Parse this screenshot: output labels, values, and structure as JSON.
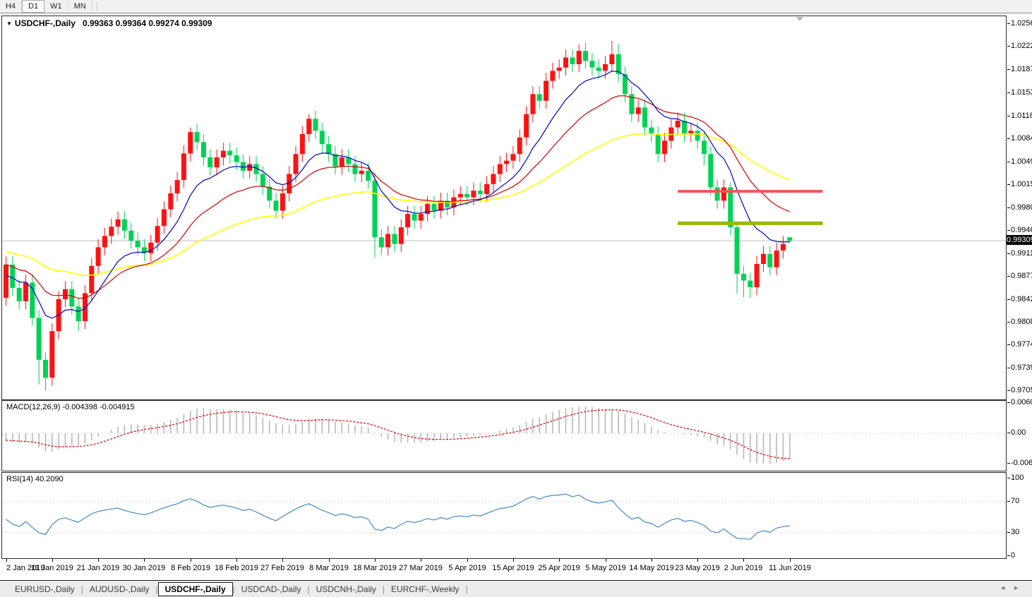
{
  "toolbar": {
    "timeframes": [
      {
        "label": "H4",
        "active": false
      },
      {
        "label": "D1",
        "active": true
      },
      {
        "label": "W1",
        "active": false
      },
      {
        "label": "MN",
        "active": false
      }
    ]
  },
  "chart": {
    "symbol_label": "USDCHF-,Daily",
    "ohlc_label": "0.99363 0.99364 0.99274 0.99309",
    "current_price": "0.99309",
    "price_axis_ticks": [
      "1.02560",
      "1.02220",
      "1.01870",
      "1.01530",
      "1.01180",
      "1.00840",
      "1.00490",
      "1.00150",
      "0.99800",
      "0.99460",
      "0.99110",
      "0.98770",
      "0.98420",
      "0.98080",
      "0.97740",
      "0.97390",
      "0.97050"
    ],
    "date_axis_ticks": [
      "2 Jan 2019",
      "11 Jan 2019",
      "21 Jan 2019",
      "30 Jan 2019",
      "8 Feb 2019",
      "18 Feb 2019",
      "27 Feb 2019",
      "8 Mar 2019",
      "18 Mar 2019",
      "27 Mar 2019",
      "5 Apr 2019",
      "15 Apr 2019",
      "25 Apr 2019",
      "5 May 2019",
      "14 May 2019",
      "23 May 2019",
      "2 Jun 2019",
      "11 Jun 2019"
    ]
  },
  "macd_panel": {
    "label": "MACD(12,26,9) -0.004398 -0.004915",
    "axis_ticks": [
      "0.006058",
      "0.00",
      "-0.006096"
    ]
  },
  "rsi_panel": {
    "label": "RSI(14) 40.2090",
    "axis_ticks": [
      "100",
      "70",
      "30",
      "0"
    ]
  },
  "tabs": {
    "items": [
      {
        "label": "EURUSD-,Daily",
        "active": false
      },
      {
        "label": "AUDUSD-,Daily",
        "active": false
      },
      {
        "label": "USDCHF-,Daily",
        "active": true
      },
      {
        "label": "USDCAD-,Daily",
        "active": false
      },
      {
        "label": "USDCNH-,Daily",
        "active": false
      },
      {
        "label": "EURCHF-,Weekly",
        "active": false
      }
    ],
    "scroll_left": "◄",
    "scroll_right": "►"
  },
  "chart_data": {
    "type": "candlestick",
    "symbol": "USDCHF",
    "timeframe": "Daily",
    "ohlc_current": {
      "open": 0.99363,
      "high": 0.99364,
      "low": 0.99274,
      "close": 0.99309
    },
    "ylim": [
      0.96925,
      1.0268
    ],
    "bars_per_tick": 7,
    "colors": {
      "bullish": "#ff1111",
      "bearish": "#00d255",
      "ma_fast": "#0202c8",
      "ma_medium": "#d40000",
      "ma_slow": "#ffff00",
      "current_price_line": "#c0c0c0",
      "macd_histogram": "#b4b4b4",
      "macd_signal": "#e00000",
      "rsi_line": "#4688c8",
      "rsi_levels": "#b8b8b8"
    },
    "moving_averages": {
      "fast_period": 10,
      "medium_period": 21,
      "slow_period": 50,
      "seeds": {
        "fast": 0.9875,
        "medium": 0.9895,
        "slow": 0.9915
      }
    },
    "macd": {
      "fast": 12,
      "slow": 26,
      "signal": 9,
      "value": -0.004398,
      "signal_value": -0.004915,
      "range": [
        -0.006096,
        0.006058
      ],
      "seeds": {
        "ema_fast": 0.988,
        "ema_slow": 0.99,
        "signal": -0.0013
      }
    },
    "rsi": {
      "period": 14,
      "value": 40.209,
      "levels": [
        70,
        30
      ],
      "range": [
        0,
        100
      ],
      "seeds": {
        "avg_gain": 0.0009,
        "avg_loss": 0.001
      }
    },
    "hlines": [
      {
        "name": "resistance-line",
        "price": 1.0005,
        "color": "#f25555",
        "width": 4,
        "x_from_bar": 102,
        "x_to_bar": 124
      },
      {
        "name": "support-line",
        "price": 0.9957,
        "color": "#9ab800",
        "width": 5,
        "x_from_bar": 102,
        "x_to_bar": 124
      }
    ],
    "candles": [
      [
        0.9845,
        0.9907,
        0.9833,
        0.9895
      ],
      [
        0.9895,
        0.9907,
        0.9848,
        0.986
      ],
      [
        0.986,
        0.9872,
        0.9828,
        0.984
      ],
      [
        0.984,
        0.988,
        0.9828,
        0.9868
      ],
      [
        0.9868,
        0.988,
        0.9803,
        0.9815
      ],
      [
        0.9815,
        0.9827,
        0.9715,
        0.9752
      ],
      [
        0.9752,
        0.9764,
        0.9706,
        0.9725
      ],
      [
        0.9725,
        0.9807,
        0.9713,
        0.9795
      ],
      [
        0.9795,
        0.9855,
        0.9783,
        0.9843
      ],
      [
        0.9843,
        0.987,
        0.9831,
        0.9858
      ],
      [
        0.9858,
        0.987,
        0.982,
        0.9832
      ],
      [
        0.9832,
        0.9844,
        0.9795,
        0.981
      ],
      [
        0.981,
        0.9864,
        0.9798,
        0.9852
      ],
      [
        0.9852,
        0.9905,
        0.984,
        0.9893
      ],
      [
        0.9893,
        0.9933,
        0.9881,
        0.9921
      ],
      [
        0.9921,
        0.995,
        0.9909,
        0.9938
      ],
      [
        0.9938,
        0.9964,
        0.9926,
        0.9952
      ],
      [
        0.9952,
        0.9975,
        0.994,
        0.9963
      ],
      [
        0.9963,
        0.9975,
        0.9934,
        0.9946
      ],
      [
        0.9946,
        0.9958,
        0.9919,
        0.9931
      ],
      [
        0.9931,
        0.9943,
        0.9909,
        0.9921
      ],
      [
        0.9921,
        0.9933,
        0.99,
        0.9912
      ],
      [
        0.9912,
        0.994,
        0.99,
        0.9928
      ],
      [
        0.9928,
        0.9965,
        0.9916,
        0.9953
      ],
      [
        0.9953,
        0.999,
        0.9941,
        0.9978
      ],
      [
        0.9978,
        1.0014,
        0.9966,
        1.0002
      ],
      [
        1.0002,
        1.0034,
        0.999,
        1.0022
      ],
      [
        1.0022,
        1.0074,
        1.001,
        1.0062
      ],
      [
        1.0062,
        1.0101,
        1.005,
        1.0094
      ],
      [
        1.0094,
        1.0106,
        1.0067,
        1.0079
      ],
      [
        1.0079,
        1.0091,
        1.0044,
        1.0056
      ],
      [
        1.0056,
        1.0068,
        1.0029,
        1.0041
      ],
      [
        1.0041,
        1.0068,
        1.0029,
        1.0056
      ],
      [
        1.0056,
        1.0078,
        1.0044,
        1.0066
      ],
      [
        1.0066,
        1.0078,
        1.0047,
        1.0059
      ],
      [
        1.0059,
        1.0071,
        1.0037,
        1.0049
      ],
      [
        1.0049,
        1.0061,
        1.0024,
        1.0036
      ],
      [
        1.0036,
        1.0058,
        1.0024,
        1.0046
      ],
      [
        1.0046,
        1.0058,
        1.0019,
        1.0031
      ],
      [
        1.0031,
        1.0043,
        1.0,
        1.0012
      ],
      [
        1.0012,
        1.0024,
        0.9979,
        0.9991
      ],
      [
        0.9991,
        1.0003,
        0.9964,
        0.9976
      ],
      [
        0.9976,
        1.0014,
        0.9964,
        1.0002
      ],
      [
        1.0002,
        1.0043,
        0.999,
        1.0031
      ],
      [
        1.0031,
        1.0073,
        1.0019,
        1.0061
      ],
      [
        1.0061,
        1.0103,
        1.0049,
        1.0091
      ],
      [
        1.0091,
        1.0121,
        1.0079,
        1.0114
      ],
      [
        1.0114,
        1.0126,
        1.0084,
        1.0096
      ],
      [
        1.0096,
        1.0108,
        1.0064,
        1.0076
      ],
      [
        1.0076,
        1.0088,
        1.0049,
        1.0061
      ],
      [
        1.0061,
        1.0073,
        1.003,
        1.0042
      ],
      [
        1.0042,
        1.0068,
        1.003,
        1.0056
      ],
      [
        1.0056,
        1.0068,
        1.0034,
        1.0046
      ],
      [
        1.0046,
        1.0058,
        1.0019,
        1.0031
      ],
      [
        1.0031,
        1.0048,
        1.0019,
        1.0036
      ],
      [
        1.0036,
        1.0048,
        1.0009,
        1.0021
      ],
      [
        1.0021,
        1.0033,
        0.9906,
        0.9936
      ],
      [
        0.9936,
        0.9948,
        0.9909,
        0.9921
      ],
      [
        0.9921,
        0.9953,
        0.9909,
        0.9941
      ],
      [
        0.9941,
        0.9953,
        0.9914,
        0.9926
      ],
      [
        0.9926,
        0.9963,
        0.9914,
        0.9951
      ],
      [
        0.9951,
        0.9983,
        0.9939,
        0.9971
      ],
      [
        0.9971,
        0.9983,
        0.9949,
        0.9961
      ],
      [
        0.9961,
        0.9983,
        0.9949,
        0.9971
      ],
      [
        0.9971,
        0.9998,
        0.9959,
        0.9986
      ],
      [
        0.9986,
        0.9998,
        0.9964,
        0.9976
      ],
      [
        0.9976,
        1.0003,
        0.9964,
        0.9991
      ],
      [
        0.9991,
        1.0003,
        0.9969,
        0.9981
      ],
      [
        0.9981,
        1.0008,
        0.9969,
        0.9996
      ],
      [
        0.9996,
        1.0013,
        0.9984,
        1.0001
      ],
      [
        1.0001,
        1.0013,
        0.9984,
        0.9996
      ],
      [
        0.9996,
        1.0018,
        0.9984,
        1.0006
      ],
      [
        1.0006,
        1.0018,
        0.9989,
        1.0001
      ],
      [
        1.0001,
        1.0028,
        0.9989,
        1.0016
      ],
      [
        1.0016,
        1.0043,
        1.0004,
        1.0031
      ],
      [
        1.0031,
        1.0058,
        1.0019,
        1.0046
      ],
      [
        1.0046,
        1.0063,
        1.0034,
        1.0051
      ],
      [
        1.0051,
        1.0073,
        1.0039,
        1.0061
      ],
      [
        1.0061,
        1.0098,
        1.0049,
        1.0086
      ],
      [
        1.0086,
        1.0133,
        1.0074,
        1.0121
      ],
      [
        1.0121,
        1.0163,
        1.0109,
        1.0151
      ],
      [
        1.0151,
        1.0163,
        1.0129,
        1.0141
      ],
      [
        1.0141,
        1.0183,
        1.0129,
        1.0171
      ],
      [
        1.0171,
        1.0198,
        1.0159,
        1.0186
      ],
      [
        1.0186,
        1.0203,
        1.0174,
        1.0191
      ],
      [
        1.0191,
        1.0218,
        1.0179,
        1.0206
      ],
      [
        1.0206,
        1.0218,
        1.0184,
        1.0196
      ],
      [
        1.0196,
        1.0226,
        1.0184,
        1.0216
      ],
      [
        1.0216,
        1.0228,
        1.0189,
        1.0201
      ],
      [
        1.0201,
        1.0213,
        1.0179,
        1.0191
      ],
      [
        1.0191,
        1.0203,
        1.0174,
        1.0186
      ],
      [
        1.0186,
        1.0208,
        1.0174,
        1.0196
      ],
      [
        1.0196,
        1.0231,
        1.0184,
        1.0211
      ],
      [
        1.0211,
        1.0226,
        1.0169,
        1.0181
      ],
      [
        1.0181,
        1.0193,
        1.0139,
        1.0151
      ],
      [
        1.0151,
        1.0163,
        1.0109,
        1.0121
      ],
      [
        1.0121,
        1.0143,
        1.0109,
        1.0131
      ],
      [
        1.0131,
        1.0143,
        1.0089,
        1.0101
      ],
      [
        1.0101,
        1.0113,
        1.0079,
        1.0091
      ],
      [
        1.0091,
        1.0103,
        1.0049,
        1.0061
      ],
      [
        1.0061,
        1.0093,
        1.0049,
        1.0081
      ],
      [
        1.0081,
        1.0113,
        1.0069,
        1.0101
      ],
      [
        1.0101,
        1.0123,
        1.0089,
        1.0111
      ],
      [
        1.0111,
        1.0123,
        1.0079,
        1.0091
      ],
      [
        1.0091,
        1.0108,
        1.0079,
        1.0096
      ],
      [
        1.0096,
        1.0108,
        1.0069,
        1.0081
      ],
      [
        1.0081,
        1.0093,
        1.0044,
        1.0061
      ],
      [
        1.0061,
        1.0073,
        0.9999,
        1.0011
      ],
      [
        1.0011,
        1.0023,
        0.9979,
        0.9991
      ],
      [
        0.9991,
        1.0023,
        0.9979,
        1.0011
      ],
      [
        1.0011,
        1.0018,
        0.9939,
        0.9951
      ],
      [
        0.9951,
        0.9958,
        0.9851,
        0.9881
      ],
      [
        0.9881,
        0.9893,
        0.9846,
        0.9871
      ],
      [
        0.9871,
        0.9883,
        0.9845,
        0.9861
      ],
      [
        0.9861,
        0.9908,
        0.9849,
        0.9896
      ],
      [
        0.9896,
        0.9923,
        0.9884,
        0.9911
      ],
      [
        0.9911,
        0.9923,
        0.9879,
        0.9891
      ],
      [
        0.9891,
        0.9928,
        0.9879,
        0.9916
      ],
      [
        0.9916,
        0.9938,
        0.9904,
        0.9926
      ],
      [
        0.9936,
        0.9936,
        0.9927,
        0.9931
      ]
    ]
  }
}
